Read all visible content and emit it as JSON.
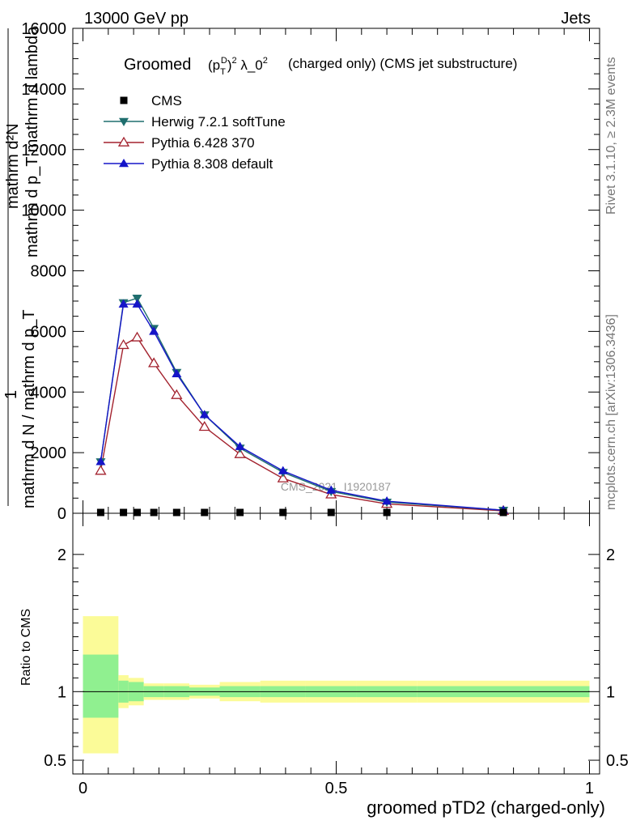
{
  "header": {
    "energy": "13000 GeV pp",
    "category": "Jets",
    "rivet": "Rivet 3.1.10, ≥ 2.3M events",
    "mcplots": "mcplots.cern.ch [arXiv:1306.3436]",
    "watermark": "CMS_2021_I1920187"
  },
  "title": {
    "prefix": "Groomed",
    "suffix": "(charged only) (CMS jet substructure)"
  },
  "axes": {
    "xlabel": "groomed pTD2 (charged-only)",
    "ratio_ylabel": "Ratio to CMS",
    "main_ylabel_top": "mathrm d²N",
    "main_ylabel_bottom": "mathrm d p_T mathrm d lambda",
    "main_ylabel_one": "1",
    "main_ylabel_norm": "mathrm d N / mathrm d p_T"
  },
  "legend": [
    {
      "key": "cms",
      "label": "CMS"
    },
    {
      "key": "herwig",
      "label": "Herwig 7.2.1 softTune"
    },
    {
      "key": "py6",
      "label": "Pythia 6.428 370"
    },
    {
      "key": "py8",
      "label": "Pythia 8.308 default"
    }
  ],
  "chart_data": {
    "type": "line",
    "x": [
      0.035,
      0.08,
      0.107,
      0.14,
      0.185,
      0.24,
      0.31,
      0.395,
      0.49,
      0.6,
      0.83
    ],
    "bin_edges": [
      0,
      0.07,
      0.09,
      0.12,
      0.16,
      0.21,
      0.27,
      0.35,
      0.44,
      0.54,
      0.66,
      1.0
    ],
    "series": [
      {
        "key": "cms",
        "name": "CMS",
        "color": "#000000",
        "marker": "square",
        "values": [
          5,
          6,
          6,
          6,
          5,
          5,
          4,
          4,
          3,
          3,
          2
        ]
      },
      {
        "key": "herwig",
        "name": "Herwig 7.2.1 softTune",
        "color": "#1f6e6e",
        "marker": "triangle-down",
        "values": [
          1700,
          6950,
          7100,
          6100,
          4650,
          3250,
          2150,
          1350,
          720,
          370,
          100
        ]
      },
      {
        "key": "py6",
        "name": "Pythia 6.428 370",
        "color": "#a3222e",
        "marker": "triangle-open",
        "values": [
          1400,
          5550,
          5800,
          4950,
          3900,
          2850,
          1950,
          1150,
          620,
          310,
          80
        ]
      },
      {
        "key": "py8",
        "name": "Pythia 8.308 default",
        "color": "#1515c8",
        "marker": "triangle-up",
        "values": [
          1700,
          6900,
          6900,
          6000,
          4600,
          3250,
          2200,
          1400,
          760,
          400,
          100
        ]
      }
    ],
    "main_y_ticks": [
      0,
      2000,
      4000,
      6000,
      8000,
      10000,
      12000,
      14000,
      16000
    ],
    "main_ylim": [
      0,
      16000
    ],
    "ratio_y_ticks": [
      0.5,
      1,
      2
    ],
    "ratio_ylim": [
      0.4,
      2.3
    ],
    "x_ticks": [
      0,
      0.5,
      1
    ],
    "xlim": [
      -0.02,
      1.02
    ],
    "ratio_band_inner": [
      [
        0.81,
        1.27
      ],
      [
        0.92,
        1.08
      ],
      [
        0.93,
        1.07
      ],
      [
        0.96,
        1.04
      ],
      [
        0.96,
        1.04
      ],
      [
        0.97,
        1.03
      ],
      [
        0.96,
        1.04
      ],
      [
        0.96,
        1.04
      ],
      [
        0.96,
        1.04
      ],
      [
        0.96,
        1.04
      ],
      [
        0.96,
        1.04
      ]
    ],
    "ratio_band_outer": [
      [
        0.55,
        1.55
      ],
      [
        0.88,
        1.12
      ],
      [
        0.9,
        1.1
      ],
      [
        0.94,
        1.06
      ],
      [
        0.94,
        1.06
      ],
      [
        0.95,
        1.05
      ],
      [
        0.93,
        1.07
      ],
      [
        0.92,
        1.08
      ],
      [
        0.92,
        1.08
      ],
      [
        0.92,
        1.08
      ],
      [
        0.92,
        1.08
      ]
    ],
    "colors": {
      "band_inner": "#90f090",
      "band_outer": "#fbfb98"
    }
  }
}
